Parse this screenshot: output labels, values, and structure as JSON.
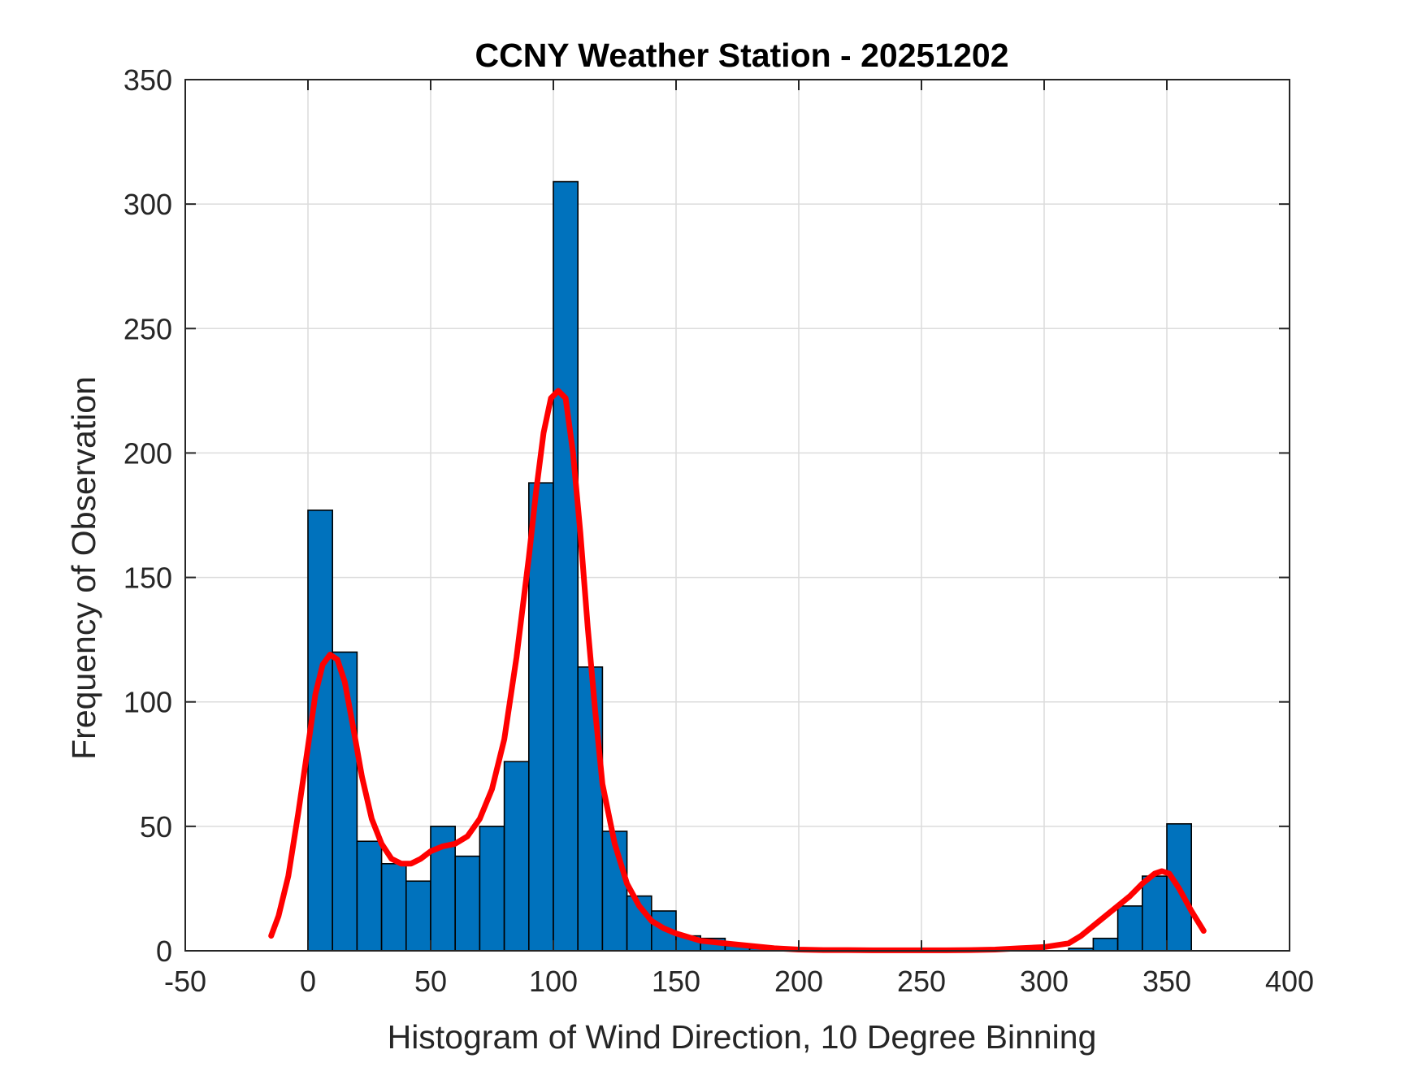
{
  "chart_data": {
    "type": "bar",
    "title": "CCNY Weather Station - 20251202",
    "xlabel": "Histogram of Wind Direction, 10 Degree Binning",
    "ylabel": "Frequency of Observation",
    "xlim": [
      -50,
      400
    ],
    "ylim": [
      0,
      350
    ],
    "x_ticks": [
      -50,
      0,
      50,
      100,
      150,
      200,
      250,
      300,
      350,
      400
    ],
    "y_ticks": [
      0,
      50,
      100,
      150,
      200,
      250,
      300,
      350
    ],
    "grid": true,
    "bar_color": "#0072BD",
    "line_color": "#FF0000",
    "bins": {
      "edges_start": [
        0,
        10,
        20,
        30,
        40,
        50,
        60,
        70,
        80,
        90,
        100,
        110,
        120,
        130,
        140,
        150,
        160,
        170,
        180,
        190,
        200,
        210,
        220,
        230,
        240,
        250,
        260,
        270,
        280,
        290,
        300,
        310,
        320,
        330,
        340,
        350
      ],
      "width": 10,
      "values": [
        177,
        120,
        44,
        35,
        28,
        50,
        38,
        50,
        76,
        188,
        309,
        114,
        48,
        22,
        16,
        6,
        5,
        2,
        1,
        1,
        0,
        0,
        0,
        0,
        0,
        0,
        0,
        0,
        0,
        0,
        0,
        1,
        5,
        18,
        30,
        51
      ]
    },
    "fit_curve": {
      "x": [
        -15,
        -12,
        -8,
        -4,
        0,
        3,
        6,
        9,
        12,
        15,
        18,
        22,
        26,
        30,
        34,
        38,
        42,
        46,
        50,
        55,
        60,
        65,
        70,
        75,
        80,
        85,
        90,
        93,
        96,
        99,
        102,
        105,
        108,
        111,
        114,
        117,
        120,
        125,
        130,
        135,
        140,
        145,
        150,
        160,
        170,
        180,
        190,
        200,
        210,
        220,
        230,
        240,
        250,
        260,
        270,
        280,
        290,
        300,
        310,
        315,
        320,
        325,
        330,
        335,
        340,
        345,
        348,
        351,
        355,
        360,
        365
      ],
      "y": [
        6,
        14,
        30,
        55,
        82,
        103,
        115,
        119,
        117,
        108,
        92,
        70,
        53,
        43,
        37,
        35,
        35,
        37,
        40,
        42,
        43,
        46,
        53,
        65,
        85,
        118,
        158,
        185,
        208,
        222,
        225,
        222,
        200,
        168,
        130,
        97,
        67,
        43,
        27,
        18,
        12,
        9,
        7,
        4,
        3,
        2,
        1,
        0.5,
        0.3,
        0.3,
        0.2,
        0.2,
        0.2,
        0.2,
        0.3,
        0.5,
        1,
        1.5,
        3,
        6,
        10,
        14,
        18,
        22,
        27,
        31,
        32,
        31,
        25,
        16,
        8
      ]
    }
  }
}
